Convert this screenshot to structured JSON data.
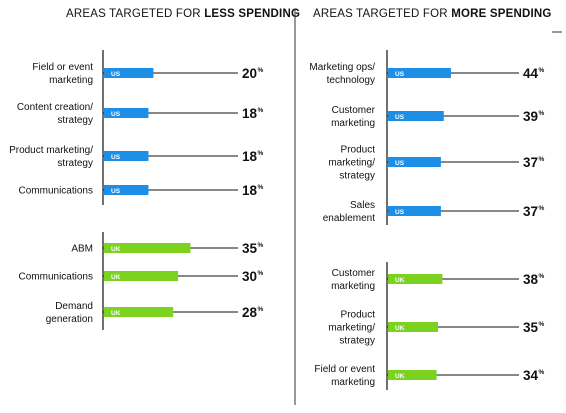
{
  "colors": {
    "us": "#1e8fe6",
    "uk": "#7bd320",
    "line": "#111111",
    "divider": "#333333"
  },
  "headers": {
    "left": {
      "prefix": "AREAS TARGETED FOR ",
      "emphasis": "LESS SPENDING"
    },
    "right": {
      "prefix": "AREAS TARGETED FOR ",
      "emphasis": "MORE SPENDING"
    }
  },
  "chart_data": [
    {
      "type": "bar",
      "title": "AREAS TARGETED FOR LESS SPENDING",
      "unit": "%",
      "groups": [
        {
          "name": "US",
          "categories": [
            [
              "Field or event",
              "marketing"
            ],
            [
              "Content creation/",
              "strategy"
            ],
            [
              "Product marketing/",
              "strategy"
            ],
            [
              "Communications"
            ]
          ],
          "values": [
            20,
            18,
            18,
            18
          ]
        },
        {
          "name": "UK",
          "categories": [
            [
              "ABM"
            ],
            [
              "Communications"
            ],
            [
              "Demand",
              "generation"
            ]
          ],
          "values": [
            35,
            30,
            28
          ]
        }
      ]
    },
    {
      "type": "bar",
      "title": "AREAS TARGETED FOR MORE SPENDING",
      "unit": "%",
      "groups": [
        {
          "name": "US",
          "categories": [
            [
              "Marketing ops/",
              "technology"
            ],
            [
              "Customer",
              "marketing"
            ],
            [
              "Product",
              "marketing/",
              "strategy"
            ],
            [
              "Sales",
              "enablement"
            ]
          ],
          "values": [
            44,
            39,
            37,
            37
          ]
        },
        {
          "name": "UK",
          "categories": [
            [
              "Customer",
              "marketing"
            ],
            [
              "Product",
              "marketing/",
              "strategy"
            ],
            [
              "Field or event",
              "marketing"
            ]
          ],
          "values": [
            38,
            35,
            34
          ]
        }
      ]
    }
  ]
}
